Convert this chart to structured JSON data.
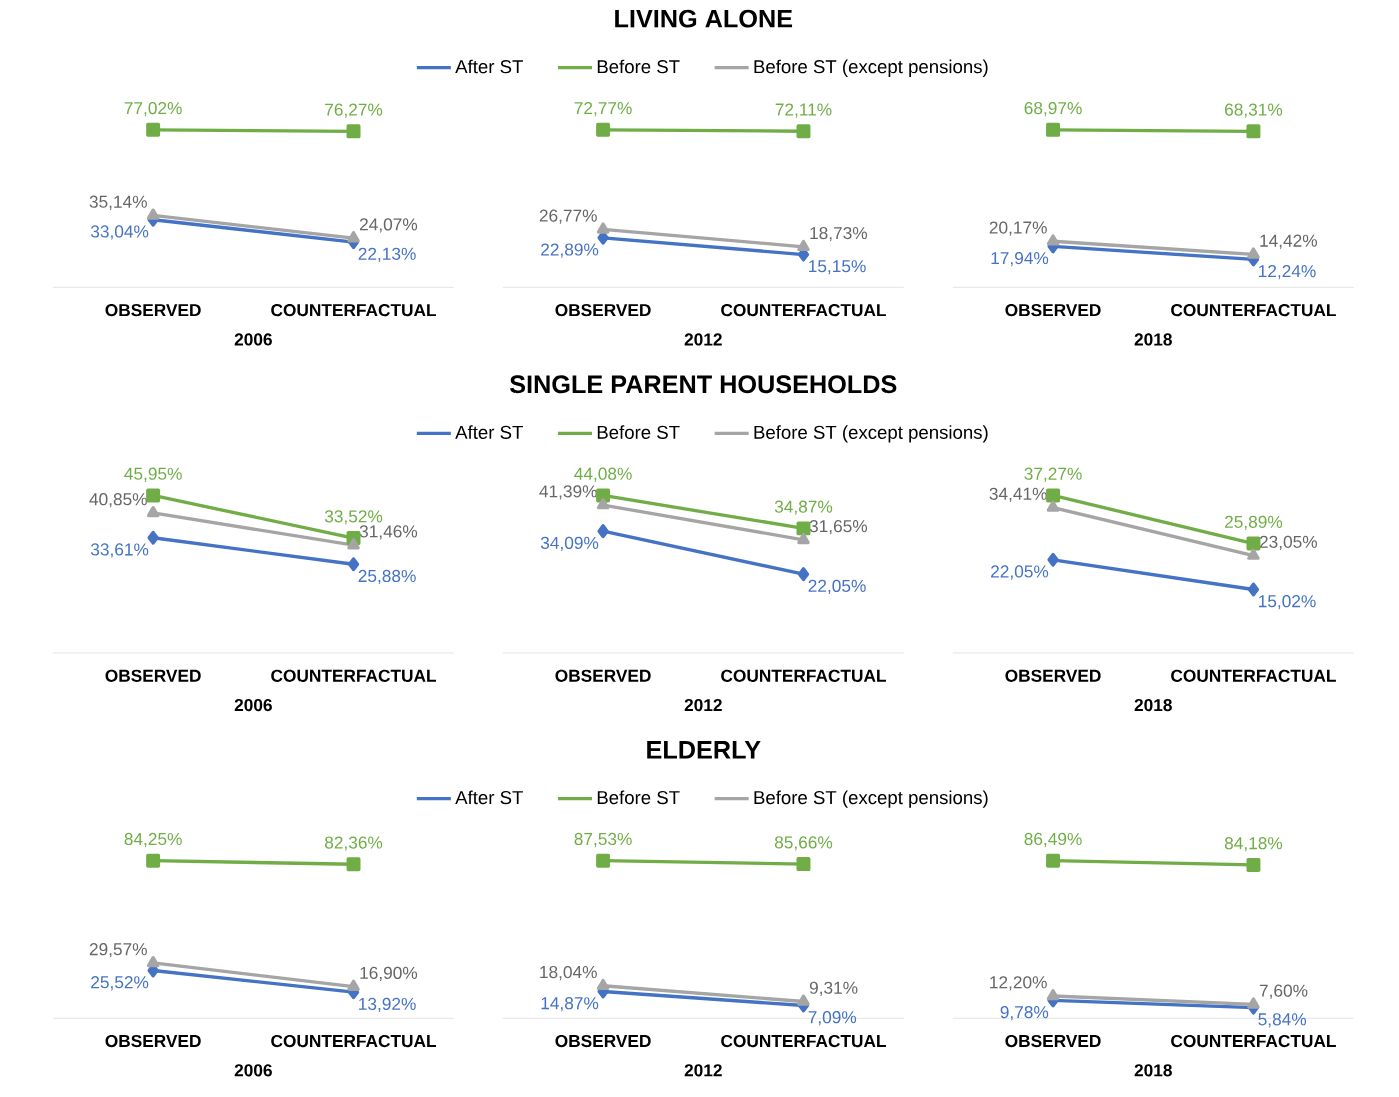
{
  "chart_data": [
    {
      "type": "line",
      "categories": [
        "OBSERVED",
        "COUNTERFACTUAL"
      ],
      "xlabel": "2006",
      "series": [
        {
          "color": "#4472c4",
          "marker": "diamond",
          "values": [
            33.04,
            22.13
          ],
          "value_labels": [
            "33,04%",
            "22,13%"
          ]
        },
        {
          "color": "#70ad47",
          "marker": "square",
          "values": [
            77.02,
            76.27
          ],
          "value_labels": [
            "77,02%",
            "76,27%"
          ]
        },
        {
          "color": "#a5a5a5",
          "marker": "triangle",
          "values": [
            35.14,
            24.07
          ],
          "value_labels": [
            "35,14%",
            "24,07%"
          ]
        }
      ]
    },
    {
      "type": "line",
      "title": "LIVING ALONE",
      "legend": "top",
      "categories": [
        "OBSERVED",
        "COUNTERFACTUAL"
      ],
      "xlabel": "2012",
      "series": [
        {
          "name": "After ST",
          "color": "#4472c4",
          "marker": "diamond",
          "values": [
            22.89,
            15.15
          ],
          "value_labels": [
            "22,89%",
            "15,15%"
          ]
        },
        {
          "name": "Before ST",
          "color": "#70ad47",
          "marker": "square",
          "values": [
            72.77,
            72.11
          ],
          "value_labels": [
            "72,77%",
            "72,11%"
          ]
        },
        {
          "name": "Before ST (except pensions)",
          "color": "#a5a5a5",
          "marker": "triangle",
          "values": [
            26.77,
            18.73
          ],
          "value_labels": [
            "26,77%",
            "18,73%"
          ]
        }
      ]
    },
    {
      "type": "line",
      "categories": [
        "OBSERVED",
        "COUNTERFACTUAL"
      ],
      "xlabel": "2018",
      "series": [
        {
          "color": "#4472c4",
          "marker": "diamond",
          "values": [
            17.94,
            12.24
          ],
          "value_labels": [
            "17,94%",
            "12,24%"
          ]
        },
        {
          "color": "#70ad47",
          "marker": "square",
          "values": [
            68.97,
            68.31
          ],
          "value_labels": [
            "68,97%",
            "68,31%"
          ]
        },
        {
          "color": "#a5a5a5",
          "marker": "triangle",
          "values": [
            20.17,
            14.42
          ],
          "value_labels": [
            "20,17%",
            "14,42%"
          ]
        }
      ]
    },
    {
      "type": "line",
      "categories": [
        "OBSERVED",
        "COUNTERFACTUAL"
      ],
      "xlabel": "2006",
      "series": [
        {
          "color": "#4472c4",
          "marker": "diamond",
          "values": [
            33.61,
            25.88
          ],
          "value_labels": [
            "33,61%",
            "25,88%"
          ]
        },
        {
          "color": "#70ad47",
          "marker": "square",
          "values": [
            45.95,
            33.52
          ],
          "value_labels": [
            "45,95%",
            "33,52%"
          ]
        },
        {
          "color": "#a5a5a5",
          "marker": "triangle",
          "values": [
            40.85,
            31.46
          ],
          "value_labels": [
            "40,85%",
            "31,46%"
          ]
        }
      ]
    },
    {
      "type": "line",
      "title": "SINGLE PARENT HOUSEHOLDS",
      "legend": "top",
      "categories": [
        "OBSERVED",
        "COUNTERFACTUAL"
      ],
      "xlabel": "2012",
      "series": [
        {
          "name": "After ST",
          "color": "#4472c4",
          "marker": "diamond",
          "values": [
            34.09,
            22.05
          ],
          "value_labels": [
            "34,09%",
            "22,05%"
          ]
        },
        {
          "name": "Before ST",
          "color": "#70ad47",
          "marker": "square",
          "values": [
            44.08,
            34.87
          ],
          "value_labels": [
            "44,08%",
            "34,87%"
          ]
        },
        {
          "name": "Before ST (except pensions)",
          "color": "#a5a5a5",
          "marker": "triangle",
          "values": [
            41.39,
            31.65
          ],
          "value_labels": [
            "41,39%",
            "31,65%"
          ]
        }
      ]
    },
    {
      "type": "line",
      "categories": [
        "OBSERVED",
        "COUNTERFACTUAL"
      ],
      "xlabel": "2018",
      "series": [
        {
          "color": "#4472c4",
          "marker": "diamond",
          "values": [
            22.05,
            15.02
          ],
          "value_labels": [
            "22,05%",
            "15,02%"
          ]
        },
        {
          "color": "#70ad47",
          "marker": "square",
          "values": [
            37.27,
            25.89
          ],
          "value_labels": [
            "37,27%",
            "25,89%"
          ]
        },
        {
          "color": "#a5a5a5",
          "marker": "triangle",
          "values": [
            34.41,
            23.05
          ],
          "value_labels": [
            "34,41%",
            "23,05%"
          ]
        }
      ]
    },
    {
      "type": "line",
      "categories": [
        "OBSERVED",
        "COUNTERFACTUAL"
      ],
      "xlabel": "2006",
      "series": [
        {
          "color": "#4472c4",
          "marker": "diamond",
          "values": [
            25.52,
            13.92
          ],
          "value_labels": [
            "25,52%",
            "13,92%"
          ]
        },
        {
          "color": "#70ad47",
          "marker": "square",
          "values": [
            84.25,
            82.36
          ],
          "value_labels": [
            "84,25%",
            "82,36%"
          ]
        },
        {
          "color": "#a5a5a5",
          "marker": "triangle",
          "values": [
            29.57,
            16.9
          ],
          "value_labels": [
            "29,57%",
            "16,90%"
          ]
        }
      ]
    },
    {
      "type": "line",
      "title": "ELDERLY",
      "legend": "top",
      "categories": [
        "OBSERVED",
        "COUNTERFACTUAL"
      ],
      "xlabel": "2012",
      "series": [
        {
          "name": "After ST",
          "color": "#4472c4",
          "marker": "diamond",
          "values": [
            14.87,
            7.09
          ],
          "value_labels": [
            "14,87%",
            "7,09%"
          ]
        },
        {
          "name": "Before ST",
          "color": "#70ad47",
          "marker": "square",
          "values": [
            87.53,
            85.66
          ],
          "value_labels": [
            "87,53%",
            "85,66%"
          ]
        },
        {
          "name": "Before ST (except pensions)",
          "color": "#a5a5a5",
          "marker": "triangle",
          "values": [
            18.04,
            9.31
          ],
          "value_labels": [
            "18,04%",
            "9,31%"
          ]
        }
      ]
    },
    {
      "type": "line",
      "categories": [
        "OBSERVED",
        "COUNTERFACTUAL"
      ],
      "xlabel": "2018",
      "series": [
        {
          "color": "#4472c4",
          "marker": "diamond",
          "values": [
            9.78,
            5.84
          ],
          "value_labels": [
            "9,78%",
            "5,84%"
          ]
        },
        {
          "color": "#70ad47",
          "marker": "square",
          "values": [
            86.49,
            84.18
          ],
          "value_labels": [
            "86,49%",
            "84,18%"
          ]
        },
        {
          "color": "#a5a5a5",
          "marker": "triangle",
          "values": [
            12.2,
            7.6
          ],
          "value_labels": [
            "12,20%",
            "7,60%"
          ]
        }
      ]
    }
  ]
}
